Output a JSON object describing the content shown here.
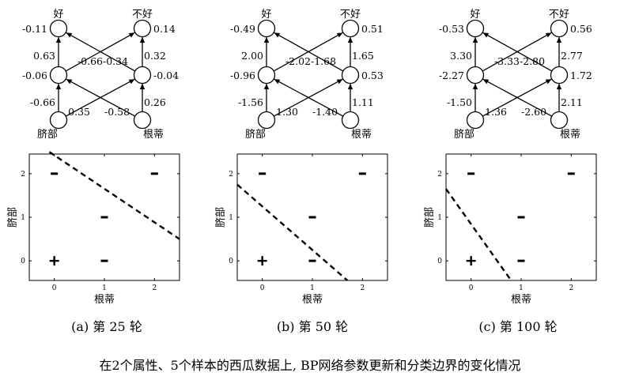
{
  "network": {
    "output_labels": [
      "好",
      "不好"
    ],
    "input_labels": [
      "脐部",
      "根蒂"
    ]
  },
  "plot": {
    "xlabel": "根蒂",
    "ylabel": "脐部",
    "xticks": [
      "0",
      "1",
      "2"
    ],
    "yticks": [
      "0",
      "1",
      "2"
    ],
    "xlim": [
      -0.5,
      2.5
    ],
    "ylim": [
      -0.45,
      2.45
    ],
    "points": [
      {
        "x": 0,
        "y": 0,
        "symbol": "+"
      },
      {
        "x": 1,
        "y": 0,
        "symbol": "-"
      },
      {
        "x": 1,
        "y": 1,
        "symbol": "-"
      },
      {
        "x": 0,
        "y": 2,
        "symbol": "-"
      },
      {
        "x": 2,
        "y": 2,
        "symbol": "-"
      }
    ]
  },
  "panels": [
    {
      "caption": "(a) 第 25 轮",
      "out_vals": [
        "-0.11",
        "0.14"
      ],
      "hid_vals": [
        "-0.06",
        "-0.04"
      ],
      "w_out": [
        "0.63",
        "-0.66",
        "-0.34",
        "0.32"
      ],
      "w_in": [
        "-0.66",
        "0.35",
        "-0.58",
        "0.26"
      ],
      "boundary": [
        [
          -0.1,
          2.5
        ],
        [
          2.5,
          0.5
        ]
      ]
    },
    {
      "caption": "(b) 第 50 轮",
      "out_vals": [
        "-0.49",
        "0.51"
      ],
      "hid_vals": [
        "-0.96",
        "0.53"
      ],
      "w_out": [
        "2.00",
        "-2.02",
        "-1.68",
        "1.65"
      ],
      "w_in": [
        "-1.56",
        "1.30",
        "-1.40",
        "1.11"
      ],
      "boundary": [
        [
          -0.5,
          1.75
        ],
        [
          1.7,
          -0.45
        ]
      ]
    },
    {
      "caption": "(c) 第 100 轮",
      "out_vals": [
        "-0.53",
        "0.56"
      ],
      "hid_vals": [
        "-2.27",
        "1.72"
      ],
      "w_out": [
        "3.30",
        "-3.33",
        "-2.80",
        "2.77"
      ],
      "w_in": [
        "-1.50",
        "1.36",
        "-2.60",
        "2.11"
      ],
      "boundary": [
        [
          -0.5,
          1.65
        ],
        [
          0.8,
          -0.45
        ]
      ]
    }
  ],
  "footer": "在2个属性、5个样本的西瓜数据上, BP网络参数更新和分类边界的变化情况"
}
